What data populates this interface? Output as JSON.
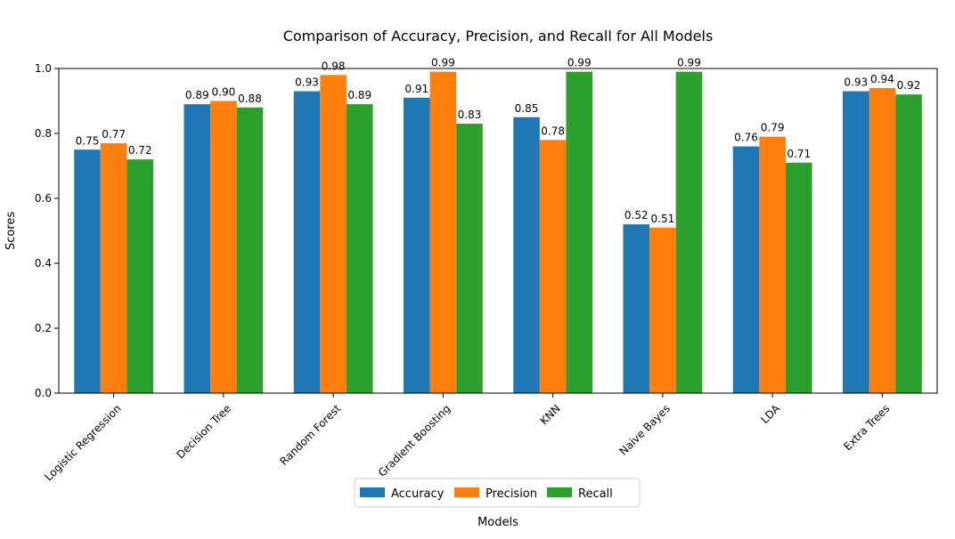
{
  "chart_data": {
    "type": "bar",
    "title": "Comparison of Accuracy, Precision, and Recall for All Models",
    "xlabel": "Models",
    "ylabel": "Scores",
    "ylim": [
      0,
      1.0
    ],
    "yticks": [
      "0.0",
      "0.2",
      "0.4",
      "0.6",
      "0.8",
      "1.0"
    ],
    "categories": [
      "Logistic Regression",
      "Decision Tree",
      "Random Forest",
      "Gradient Boosting",
      "KNN",
      "Naive Bayes",
      "LDA",
      "Extra Trees"
    ],
    "series": [
      {
        "name": "Accuracy",
        "color": "#1f77b4",
        "values": [
          0.75,
          0.89,
          0.93,
          0.91,
          0.85,
          0.52,
          0.76,
          0.93
        ],
        "labels": [
          "0.75",
          "0.89",
          "0.93",
          "0.91",
          "0.85",
          "0.52",
          "0.76",
          "0.93"
        ]
      },
      {
        "name": "Precision",
        "color": "#ff7f0e",
        "values": [
          0.77,
          0.9,
          0.98,
          0.99,
          0.78,
          0.51,
          0.79,
          0.94
        ],
        "labels": [
          "0.77",
          "0.90",
          "0.98",
          "0.99",
          "0.78",
          "0.51",
          "0.79",
          "0.94"
        ]
      },
      {
        "name": "Recall",
        "color": "#2ca02c",
        "values": [
          0.72,
          0.88,
          0.89,
          0.83,
          0.99,
          0.99,
          0.71,
          0.92
        ],
        "labels": [
          "0.72",
          "0.88",
          "0.89",
          "0.83",
          "0.99",
          "0.99",
          "0.71",
          "0.92"
        ]
      }
    ],
    "legend_position": "bottom-center",
    "grid": false
  }
}
